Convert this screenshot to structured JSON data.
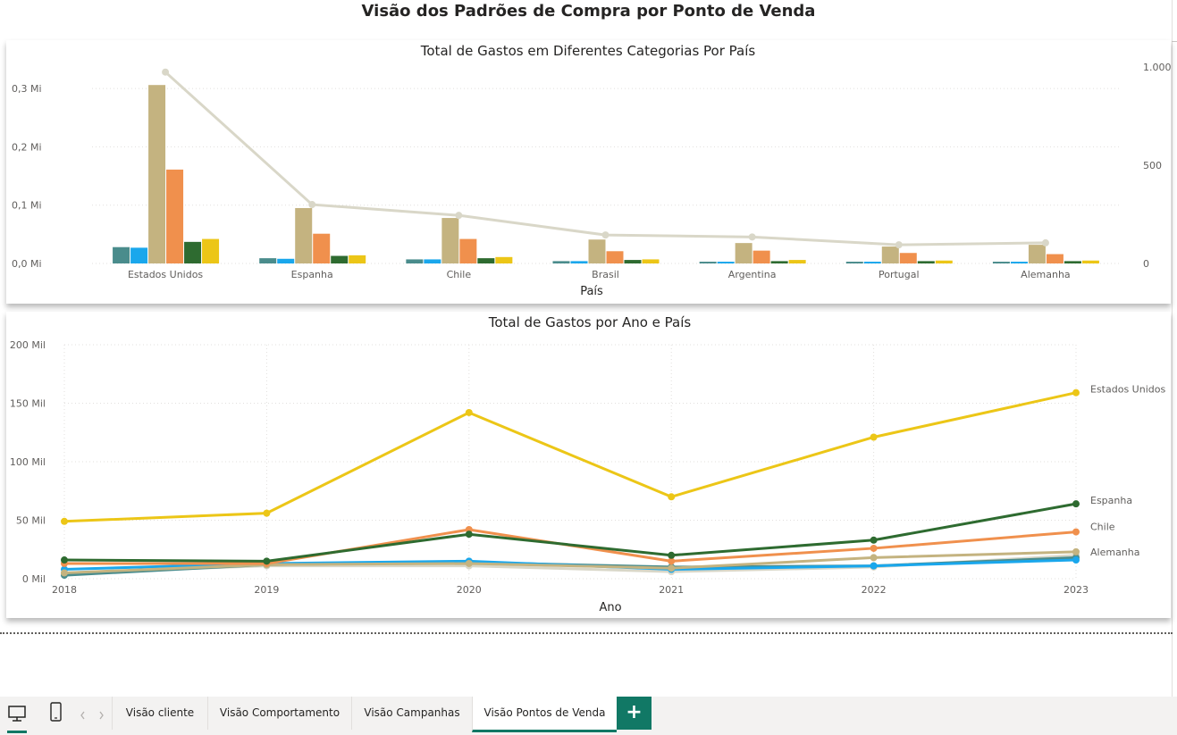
{
  "page_title": "Visão dos Padrões de Compra por Ponto de Venda",
  "tabs": [
    {
      "label": "Visão cliente"
    },
    {
      "label": "Visão Comportamento"
    },
    {
      "label": "Visão Campanhas"
    },
    {
      "label": "Visão Pontos de Venda",
      "active": true
    }
  ],
  "add_tab_label": "+",
  "colors": {
    "teal": "#4a8c8c",
    "blue": "#1aa7ec",
    "tan": "#c4b380",
    "orange": "#f0904d",
    "green": "#2e6b30",
    "yellow": "#ecc617",
    "line_gray": "#d9d7c8",
    "accent": "#117865"
  },
  "chart_data": [
    {
      "type": "bar",
      "combo_line": true,
      "title": "Total de Gastos em Diferentes Categorias Por País",
      "xlabel": "País",
      "ylabel": "",
      "categories": [
        "Estados Unidos",
        "Espanha",
        "Chile",
        "Brasil",
        "Argentina",
        "Portugal",
        "Alemanha"
      ],
      "ylim": [
        0,
        0.34
      ],
      "yticks": [
        {
          "value": 0.0,
          "label": "0,0 Mi"
        },
        {
          "value": 0.1,
          "label": "0,1 Mi"
        },
        {
          "value": 0.2,
          "label": "0,2 Mi"
        },
        {
          "value": 0.3,
          "label": "0,3 Mi"
        }
      ],
      "series": [
        {
          "color": "teal",
          "values": [
            0.028,
            0.009,
            0.007,
            0.004,
            0.003,
            0.003,
            0.003
          ]
        },
        {
          "color": "blue",
          "values": [
            0.027,
            0.008,
            0.007,
            0.004,
            0.003,
            0.003,
            0.003
          ]
        },
        {
          "color": "tan",
          "values": [
            0.306,
            0.095,
            0.078,
            0.041,
            0.035,
            0.029,
            0.032
          ]
        },
        {
          "color": "orange",
          "values": [
            0.161,
            0.051,
            0.042,
            0.021,
            0.022,
            0.018,
            0.016
          ]
        },
        {
          "color": "green",
          "values": [
            0.037,
            0.013,
            0.009,
            0.006,
            0.004,
            0.004,
            0.004
          ]
        },
        {
          "color": "yellow",
          "values": [
            0.042,
            0.014,
            0.011,
            0.007,
            0.006,
            0.005,
            0.005
          ]
        }
      ],
      "line_series": {
        "color": "line_gray",
        "values": [
          975,
          300,
          245,
          145,
          135,
          95,
          105
        ],
        "ylim": [
          0,
          1010
        ],
        "yticks": [
          {
            "value": 0,
            "label": "0"
          },
          {
            "value": 500,
            "label": "500"
          },
          {
            "value": 1000,
            "label": "1.000"
          }
        ]
      },
      "grid": true
    },
    {
      "type": "line",
      "title": "Total de Gastos por Ano e País",
      "xlabel": "Ano",
      "ylabel": "",
      "x": [
        "2018",
        "2019",
        "2020",
        "2021",
        "2022",
        "2023"
      ],
      "ylim": [
        0,
        200
      ],
      "yticks": [
        {
          "value": 0,
          "label": "0 Mil"
        },
        {
          "value": 50,
          "label": "50 Mil"
        },
        {
          "value": 100,
          "label": "100 Mil"
        },
        {
          "value": 150,
          "label": "150 Mil"
        },
        {
          "value": 200,
          "label": "200 Mil"
        }
      ],
      "series": [
        {
          "name": "Estados Unidos",
          "color": "yellow",
          "values": [
            49,
            56,
            142,
            70,
            121,
            159
          ],
          "label_visible": true
        },
        {
          "name": "Espanha",
          "color": "green",
          "values": [
            16,
            15,
            38,
            20,
            33,
            64
          ],
          "label_visible": true
        },
        {
          "name": "Chile",
          "color": "orange",
          "values": [
            13,
            13,
            42,
            15,
            26,
            40
          ],
          "label_visible": true
        },
        {
          "name": "Alemanha",
          "color": "tan",
          "values": [
            5,
            12,
            13,
            9,
            18,
            23
          ],
          "label_visible": true
        },
        {
          "color": "blue",
          "values": [
            8,
            13,
            15,
            8,
            11,
            16
          ]
        },
        {
          "color": "teal",
          "values": [
            3,
            12,
            14,
            10,
            11,
            18
          ]
        },
        {
          "color": "line_gray",
          "values": [
            5,
            11,
            11,
            6,
            10,
            20
          ]
        }
      ],
      "grid": true
    }
  ]
}
